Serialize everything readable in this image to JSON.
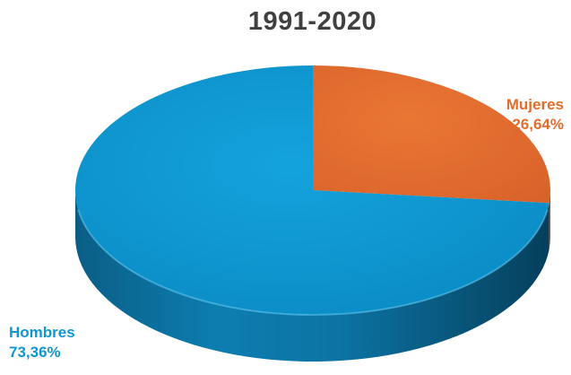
{
  "chart_data": {
    "type": "pie",
    "title": "1991-2020",
    "slices": [
      {
        "label": "Mujeres",
        "value": 26.64,
        "value_text": "26,64%",
        "color": "#e46c2c",
        "label_color": "#e46c2c"
      },
      {
        "label": "Hombres",
        "value": 73.36,
        "value_text": "73,36%",
        "color": "#0f97d1",
        "label_color": "#0f97d1"
      }
    ],
    "style": "3d",
    "start_angle_deg": 0,
    "direction": "clockwise-from-top"
  }
}
